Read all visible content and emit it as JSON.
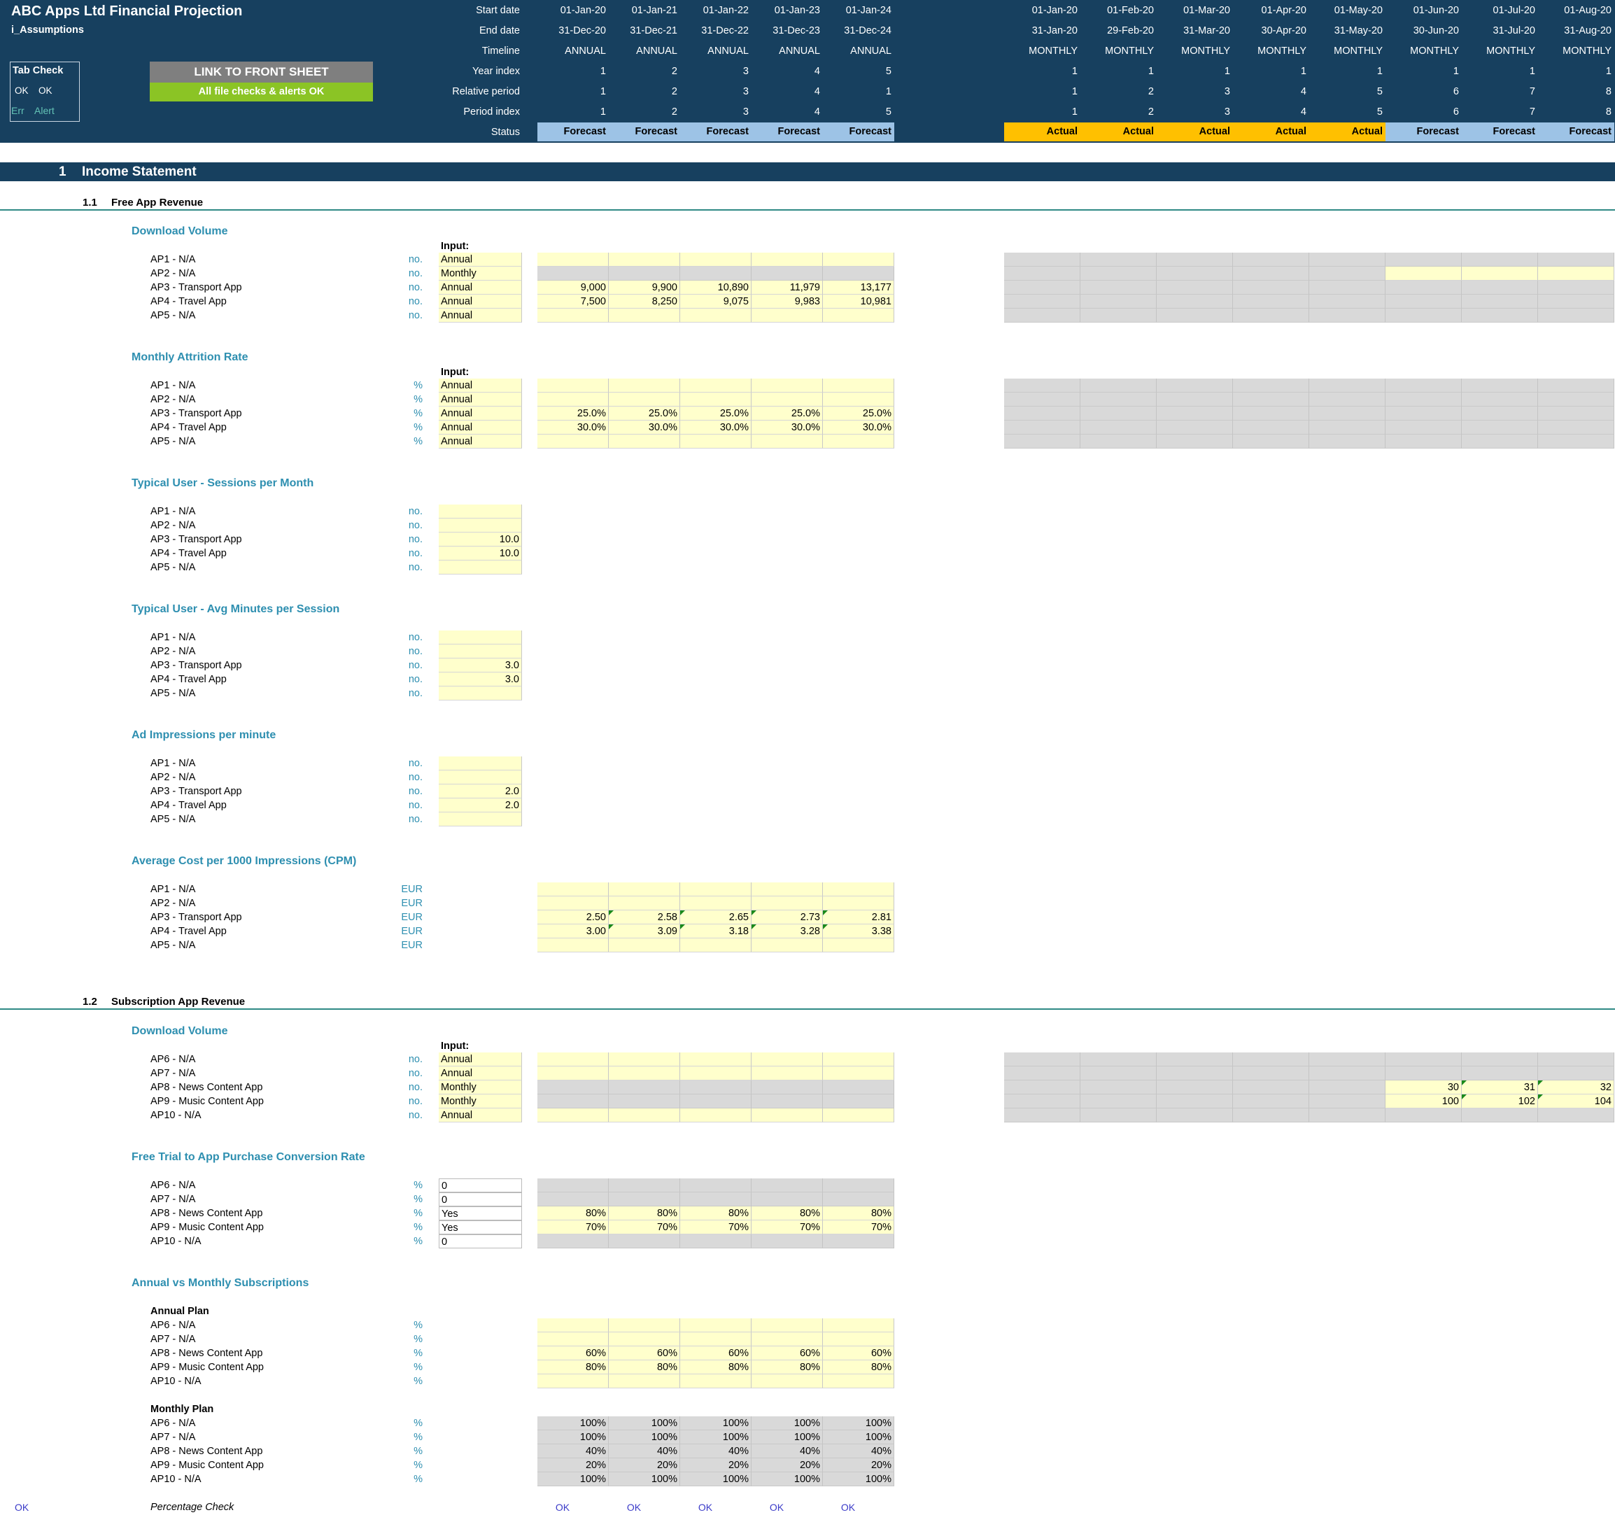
{
  "header": {
    "title": "ABC Apps Ltd Financial Projection",
    "sheet": "i_Assumptions",
    "tab_check": {
      "title": "Tab Check",
      "row1": [
        "OK",
        "OK"
      ],
      "row2": [
        "Err",
        "Alert"
      ]
    },
    "link_button": "LINK TO FRONT SHEET",
    "checks_status": "All file checks & alerts OK",
    "timeline_labels": [
      "Start date",
      "End date",
      "Timeline",
      "Year index",
      "Relative period",
      "Period index",
      "Status"
    ],
    "annual_columns": [
      {
        "start": "01-Jan-20",
        "end": "31-Dec-20",
        "timeline": "ANNUAL",
        "year": "1",
        "rel": "1",
        "period": "1",
        "status": "Forecast"
      },
      {
        "start": "01-Jan-21",
        "end": "31-Dec-21",
        "timeline": "ANNUAL",
        "year": "2",
        "rel": "2",
        "period": "2",
        "status": "Forecast"
      },
      {
        "start": "01-Jan-22",
        "end": "31-Dec-22",
        "timeline": "ANNUAL",
        "year": "3",
        "rel": "3",
        "period": "3",
        "status": "Forecast"
      },
      {
        "start": "01-Jan-23",
        "end": "31-Dec-23",
        "timeline": "ANNUAL",
        "year": "4",
        "rel": "4",
        "period": "4",
        "status": "Forecast"
      },
      {
        "start": "01-Jan-24",
        "end": "31-Dec-24",
        "timeline": "ANNUAL",
        "year": "5",
        "rel": "1",
        "period": "5",
        "status": "Forecast"
      }
    ],
    "monthly_columns": [
      {
        "start": "01-Jan-20",
        "end": "31-Jan-20",
        "timeline": "MONTHLY",
        "year": "1",
        "rel": "1",
        "period": "1",
        "status": "Actual"
      },
      {
        "start": "01-Feb-20",
        "end": "29-Feb-20",
        "timeline": "MONTHLY",
        "year": "1",
        "rel": "2",
        "period": "2",
        "status": "Actual"
      },
      {
        "start": "01-Mar-20",
        "end": "31-Mar-20",
        "timeline": "MONTHLY",
        "year": "1",
        "rel": "3",
        "period": "3",
        "status": "Actual"
      },
      {
        "start": "01-Apr-20",
        "end": "30-Apr-20",
        "timeline": "MONTHLY",
        "year": "1",
        "rel": "4",
        "period": "4",
        "status": "Actual"
      },
      {
        "start": "01-May-20",
        "end": "31-May-20",
        "timeline": "MONTHLY",
        "year": "1",
        "rel": "5",
        "period": "5",
        "status": "Actual"
      },
      {
        "start": "01-Jun-20",
        "end": "30-Jun-20",
        "timeline": "MONTHLY",
        "year": "1",
        "rel": "6",
        "period": "6",
        "status": "Forecast"
      },
      {
        "start": "01-Jul-20",
        "end": "31-Jul-20",
        "timeline": "MONTHLY",
        "year": "1",
        "rel": "7",
        "period": "7",
        "status": "Forecast"
      },
      {
        "start": "01-Aug-20",
        "end": "31-Aug-20",
        "timeline": "MONTHLY",
        "year": "1",
        "rel": "8",
        "period": "8",
        "status": "Forecast"
      }
    ],
    "colors": {
      "header_bg": "#17405f",
      "forecast": "#9dc3e6",
      "actual": "#ffc000",
      "button_grey": "#7f7f7f",
      "button_green": "#8bc425"
    }
  },
  "section1": {
    "number": "1",
    "title": "Income Statement",
    "sub1": {
      "number": "1.1",
      "title": "Free App Revenue"
    },
    "sub2": {
      "number": "1.2",
      "title": "Subscription App Revenue"
    }
  },
  "blocks": {
    "input_label": "Input:",
    "dv": {
      "title": "Download Volume",
      "rows": [
        {
          "label": "AP1 - N/A",
          "unit": "no.",
          "input": "Annual",
          "annual": [
            "",
            "",
            "",
            "",
            ""
          ]
        },
        {
          "label": "AP2 - N/A",
          "unit": "no.",
          "input": "Monthly",
          "annual": [
            "",
            "",
            "",
            "",
            ""
          ]
        },
        {
          "label": "AP3 - Transport App",
          "unit": "no.",
          "input": "Annual",
          "annual": [
            "9,000",
            "9,900",
            "10,890",
            "11,979",
            "13,177"
          ]
        },
        {
          "label": "AP4 - Travel App",
          "unit": "no.",
          "input": "Annual",
          "annual": [
            "7,500",
            "8,250",
            "9,075",
            "9,983",
            "10,981"
          ]
        },
        {
          "label": "AP5 - N/A",
          "unit": "no.",
          "input": "Annual",
          "annual": [
            "",
            "",
            "",
            "",
            ""
          ]
        }
      ]
    },
    "mar": {
      "title": "Monthly Attrition Rate",
      "rows": [
        {
          "label": "AP1 - N/A",
          "unit": "%",
          "input": "Annual",
          "annual": [
            "",
            "",
            "",
            "",
            ""
          ]
        },
        {
          "label": "AP2 - N/A",
          "unit": "%",
          "input": "Annual",
          "annual": [
            "",
            "",
            "",
            "",
            ""
          ]
        },
        {
          "label": "AP3 - Transport App",
          "unit": "%",
          "input": "Annual",
          "annual": [
            "25.0%",
            "25.0%",
            "25.0%",
            "25.0%",
            "25.0%"
          ]
        },
        {
          "label": "AP4 - Travel App",
          "unit": "%",
          "input": "Annual",
          "annual": [
            "30.0%",
            "30.0%",
            "30.0%",
            "30.0%",
            "30.0%"
          ]
        },
        {
          "label": "AP5 - N/A",
          "unit": "%",
          "input": "Annual",
          "annual": [
            "",
            "",
            "",
            "",
            ""
          ]
        }
      ]
    },
    "spm": {
      "title": "Typical User - Sessions per Month",
      "rows": [
        {
          "label": "AP1 - N/A",
          "unit": "no.",
          "value": ""
        },
        {
          "label": "AP2 - N/A",
          "unit": "no.",
          "value": ""
        },
        {
          "label": "AP3 - Transport App",
          "unit": "no.",
          "value": "10.0"
        },
        {
          "label": "AP4 - Travel App",
          "unit": "no.",
          "value": "10.0"
        },
        {
          "label": "AP5 - N/A",
          "unit": "no.",
          "value": ""
        }
      ]
    },
    "ams": {
      "title": "Typical User - Avg Minutes per Session",
      "rows": [
        {
          "label": "AP1 - N/A",
          "unit": "no.",
          "value": ""
        },
        {
          "label": "AP2 - N/A",
          "unit": "no.",
          "value": ""
        },
        {
          "label": "AP3 - Transport App",
          "unit": "no.",
          "value": "3.0"
        },
        {
          "label": "AP4 - Travel App",
          "unit": "no.",
          "value": "3.0"
        },
        {
          "label": "AP5 - N/A",
          "unit": "no.",
          "value": ""
        }
      ]
    },
    "aipm": {
      "title": "Ad Impressions per minute",
      "rows": [
        {
          "label": "AP1 - N/A",
          "unit": "no.",
          "value": ""
        },
        {
          "label": "AP2 - N/A",
          "unit": "no.",
          "value": ""
        },
        {
          "label": "AP3 - Transport App",
          "unit": "no.",
          "value": "2.0"
        },
        {
          "label": "AP4 - Travel App",
          "unit": "no.",
          "value": "2.0"
        },
        {
          "label": "AP5 - N/A",
          "unit": "no.",
          "value": ""
        }
      ]
    },
    "cpm": {
      "title": "Average Cost per 1000 Impressions (CPM)",
      "rows": [
        {
          "label": "AP1 - N/A",
          "unit": "EUR",
          "annual": [
            "",
            "",
            "",
            "",
            ""
          ]
        },
        {
          "label": "AP2 - N/A",
          "unit": "EUR",
          "annual": [
            "",
            "",
            "",
            "",
            ""
          ]
        },
        {
          "label": "AP3 - Transport App",
          "unit": "EUR",
          "annual": [
            "2.50",
            "2.58",
            "2.65",
            "2.73",
            "2.81"
          ]
        },
        {
          "label": "AP4 - Travel App",
          "unit": "EUR",
          "annual": [
            "3.00",
            "3.09",
            "3.18",
            "3.28",
            "3.38"
          ]
        },
        {
          "label": "AP5 - N/A",
          "unit": "EUR",
          "annual": [
            "",
            "",
            "",
            "",
            ""
          ]
        }
      ]
    },
    "dv2": {
      "title": "Download Volume",
      "rows": [
        {
          "label": "AP6 - N/A",
          "unit": "no.",
          "input": "Annual",
          "annual": [
            "",
            "",
            "",
            "",
            ""
          ],
          "monthly": [
            "",
            "",
            ""
          ]
        },
        {
          "label": "AP7 - N/A",
          "unit": "no.",
          "input": "Annual",
          "annual": [
            "",
            "",
            "",
            "",
            ""
          ],
          "monthly": [
            "",
            "",
            ""
          ]
        },
        {
          "label": "AP8 - News Content App",
          "unit": "no.",
          "input": "Monthly",
          "annual": [
            "",
            "",
            "",
            "",
            ""
          ],
          "monthly": [
            "30",
            "31",
            "32"
          ]
        },
        {
          "label": "AP9 - Music Content App",
          "unit": "no.",
          "input": "Monthly",
          "annual": [
            "",
            "",
            "",
            "",
            ""
          ],
          "monthly": [
            "100",
            "102",
            "104"
          ]
        },
        {
          "label": "AP10 - N/A",
          "unit": "no.",
          "input": "Annual",
          "annual": [
            "",
            "",
            "",
            "",
            ""
          ],
          "monthly": [
            "",
            "",
            ""
          ]
        }
      ]
    },
    "ftc": {
      "title": "Free Trial to App Purchase Conversion Rate",
      "rows": [
        {
          "label": "AP6 - N/A",
          "unit": "%",
          "input": "0",
          "annual": [
            "",
            "",
            "",
            "",
            ""
          ]
        },
        {
          "label": "AP7 - N/A",
          "unit": "%",
          "input": "0",
          "annual": [
            "",
            "",
            "",
            "",
            ""
          ]
        },
        {
          "label": "AP8 - News Content App",
          "unit": "%",
          "input": "Yes",
          "annual": [
            "80%",
            "80%",
            "80%",
            "80%",
            "80%"
          ]
        },
        {
          "label": "AP9 - Music Content App",
          "unit": "%",
          "input": "Yes",
          "annual": [
            "70%",
            "70%",
            "70%",
            "70%",
            "70%"
          ]
        },
        {
          "label": "AP10 - N/A",
          "unit": "%",
          "input": "0",
          "annual": [
            "",
            "",
            "",
            "",
            ""
          ]
        }
      ]
    },
    "avm": {
      "title": "Annual vs Monthly Subscriptions",
      "annual_plan": {
        "title": "Annual Plan",
        "rows": [
          {
            "label": "AP6 - N/A",
            "unit": "%",
            "annual": [
              "",
              "",
              "",
              "",
              ""
            ]
          },
          {
            "label": "AP7 - N/A",
            "unit": "%",
            "annual": [
              "",
              "",
              "",
              "",
              ""
            ]
          },
          {
            "label": "AP8 - News Content App",
            "unit": "%",
            "annual": [
              "60%",
              "60%",
              "60%",
              "60%",
              "60%"
            ]
          },
          {
            "label": "AP9 - Music Content App",
            "unit": "%",
            "annual": [
              "80%",
              "80%",
              "80%",
              "80%",
              "80%"
            ]
          },
          {
            "label": "AP10 - N/A",
            "unit": "%",
            "annual": [
              "",
              "",
              "",
              "",
              ""
            ]
          }
        ]
      },
      "monthly_plan": {
        "title": "Monthly Plan",
        "rows": [
          {
            "label": "AP6 - N/A",
            "unit": "%",
            "annual": [
              "100%",
              "100%",
              "100%",
              "100%",
              "100%"
            ]
          },
          {
            "label": "AP7 - N/A",
            "unit": "%",
            "annual": [
              "100%",
              "100%",
              "100%",
              "100%",
              "100%"
            ]
          },
          {
            "label": "AP8 - News Content App",
            "unit": "%",
            "annual": [
              "40%",
              "40%",
              "40%",
              "40%",
              "40%"
            ]
          },
          {
            "label": "AP9 - Music Content App",
            "unit": "%",
            "annual": [
              "20%",
              "20%",
              "20%",
              "20%",
              "20%"
            ]
          },
          {
            "label": "AP10 - N/A",
            "unit": "%",
            "annual": [
              "100%",
              "100%",
              "100%",
              "100%",
              "100%"
            ]
          }
        ]
      },
      "check_label": "Percentage Check",
      "check_left": "OK",
      "check_values": [
        "OK",
        "OK",
        "OK",
        "OK",
        "OK"
      ]
    }
  }
}
